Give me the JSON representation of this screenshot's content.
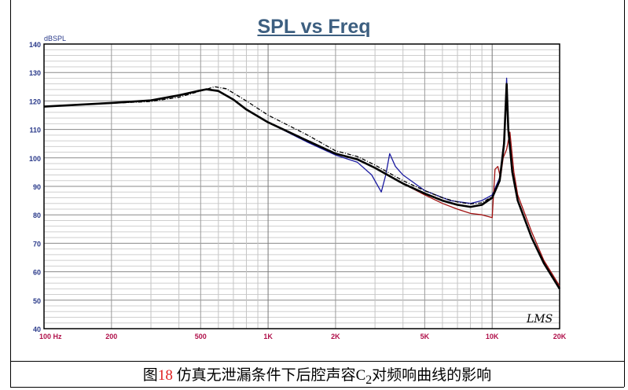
{
  "chart_data": {
    "type": "line",
    "title": "SPL vs Freq",
    "ylabel": "dBSPL",
    "xlabel": "",
    "xscale": "log",
    "xlim": [
      100,
      20000
    ],
    "ylim": [
      40,
      140
    ],
    "grid": true,
    "x_tick_labels": [
      {
        "value": 100,
        "label": "100  Hz"
      },
      {
        "value": 200,
        "label": "200"
      },
      {
        "value": 500,
        "label": "500"
      },
      {
        "value": 1000,
        "label": "1K"
      },
      {
        "value": 2000,
        "label": "2K"
      },
      {
        "value": 5000,
        "label": "5K"
      },
      {
        "value": 10000,
        "label": "10K"
      },
      {
        "value": 20000,
        "label": "20K"
      }
    ],
    "y_ticks": [
      40,
      50,
      60,
      70,
      80,
      90,
      100,
      110,
      120,
      130,
      140
    ],
    "watermark": "LMS",
    "series": [
      {
        "name": "black-solid",
        "color": "#000000",
        "style": "solid",
        "x": [
          100,
          200,
          300,
          400,
          500,
          530,
          600,
          700,
          800,
          1000,
          1500,
          2000,
          2500,
          3000,
          4000,
          5000,
          6000,
          7000,
          8000,
          9000,
          10000,
          10800,
          11300,
          11600,
          11800,
          12300,
          13000,
          15000,
          17000,
          20000
        ],
        "y": [
          118,
          119.3,
          120.2,
          122,
          123.7,
          124.1,
          123.5,
          120.5,
          117,
          112.5,
          106,
          101.5,
          99.5,
          96.5,
          91,
          87.5,
          85,
          83.5,
          82.8,
          83.5,
          86,
          92,
          105,
          126,
          110,
          95,
          85,
          72,
          63,
          54
        ]
      },
      {
        "name": "black-dash-dot",
        "color": "#000000",
        "style": "dashdot",
        "x": [
          100,
          200,
          300,
          400,
          500,
          577,
          650,
          800,
          1000,
          1500,
          2000,
          2500,
          3000,
          4000,
          5000,
          6000,
          7000,
          8000,
          9000,
          10000,
          10800,
          11300,
          11600,
          11800,
          12300,
          13000,
          15000,
          17000,
          20000
        ],
        "y": [
          118,
          119.2,
          119.8,
          121.3,
          123.5,
          125,
          124.3,
          120,
          115,
          108,
          102.5,
          100.5,
          97.5,
          92,
          88.5,
          86,
          84.5,
          83.8,
          84.2,
          86.5,
          92,
          105,
          124,
          110,
          95,
          85,
          72,
          63,
          54
        ]
      },
      {
        "name": "blue",
        "color": "#1a1aa0",
        "style": "solid",
        "x": [
          100,
          200,
          300,
          400,
          500,
          530,
          600,
          700,
          800,
          1000,
          1500,
          2000,
          2500,
          2900,
          3200,
          3350,
          3490,
          3700,
          4000,
          5000,
          6500,
          8000,
          9000,
          10000,
          10800,
          11300,
          11600,
          11800,
          12300,
          13000,
          15000,
          17000,
          20000
        ],
        "y": [
          118,
          119.3,
          120.2,
          122,
          123.7,
          124.1,
          123.5,
          120.5,
          117,
          112.5,
          105.5,
          101,
          98.5,
          94,
          88,
          94,
          101.5,
          97,
          94,
          88.5,
          85,
          84,
          85,
          87,
          93,
          106,
          128,
          110,
          95,
          85,
          72,
          63,
          54
        ]
      },
      {
        "name": "dark-red",
        "color": "#a01010",
        "style": "solid",
        "x": [
          100,
          200,
          300,
          400,
          500,
          530,
          600,
          700,
          800,
          1000,
          1500,
          2000,
          2500,
          3000,
          4000,
          5000,
          6000,
          7000,
          8000,
          9000,
          10000,
          10300,
          10600,
          10900,
          11200,
          11600,
          12000,
          12500,
          13000,
          15000,
          17000,
          20000
        ],
        "y": [
          118,
          119.3,
          120.2,
          122,
          123.7,
          124.1,
          123.5,
          120.5,
          117,
          112.5,
          106,
          101.5,
          99.5,
          96.5,
          91,
          87,
          84,
          82,
          80.5,
          80,
          79,
          96,
          97,
          93,
          100,
          103,
          109,
          95,
          87,
          74,
          64,
          55
        ]
      }
    ]
  },
  "caption": {
    "prefix": "图",
    "number": "18",
    "text": " 仿真无泄漏条件下后腔声容C",
    "subscript": "2",
    "suffix": "对频响曲线的影响"
  }
}
